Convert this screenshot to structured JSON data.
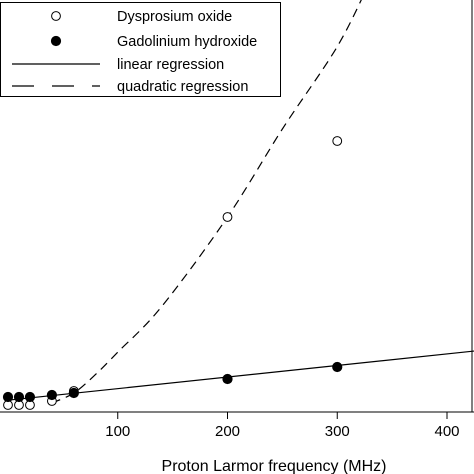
{
  "chart_data": {
    "type": "scatter",
    "xlabel": "Proton Larmor frequency (MHz)",
    "ylabel": "",
    "title": "",
    "xlim": [
      0,
      425
    ],
    "ylim": [
      0,
      100
    ],
    "x_ticks": [
      100,
      200,
      300,
      400
    ],
    "x_tick_labels": [
      "100",
      "200",
      "300",
      "400"
    ],
    "grid": false,
    "legend_position": "top-right",
    "series": [
      {
        "name": "Dysprosium oxide",
        "kind": "points",
        "marker": "open-circle",
        "x": [
          0,
          10,
          20,
          40,
          60,
          200,
          300
        ],
        "y": [
          0.0,
          0.0,
          0.0,
          1.0,
          3.5,
          47.0,
          66.0
        ]
      },
      {
        "name": "Gadolinium hydroxide",
        "kind": "points",
        "marker": "filled-circle",
        "x": [
          0,
          10,
          20,
          40,
          60,
          200,
          300
        ],
        "y": [
          2.0,
          2.0,
          2.0,
          2.5,
          3.0,
          6.5,
          9.5
        ]
      },
      {
        "name": "linear regression",
        "kind": "line",
        "style": "solid",
        "x": [
          0,
          425
        ],
        "y": [
          1.2,
          13.5
        ]
      },
      {
        "name": "quadratic regression",
        "kind": "line",
        "style": "dashed",
        "x": [
          40,
          60,
          80,
          100,
          140,
          200,
          250,
          300,
          330
        ],
        "y": [
          0.5,
          3.0,
          7.7,
          13.2,
          24.6,
          47.0,
          69.0,
          89.6,
          106.0
        ]
      }
    ]
  }
}
